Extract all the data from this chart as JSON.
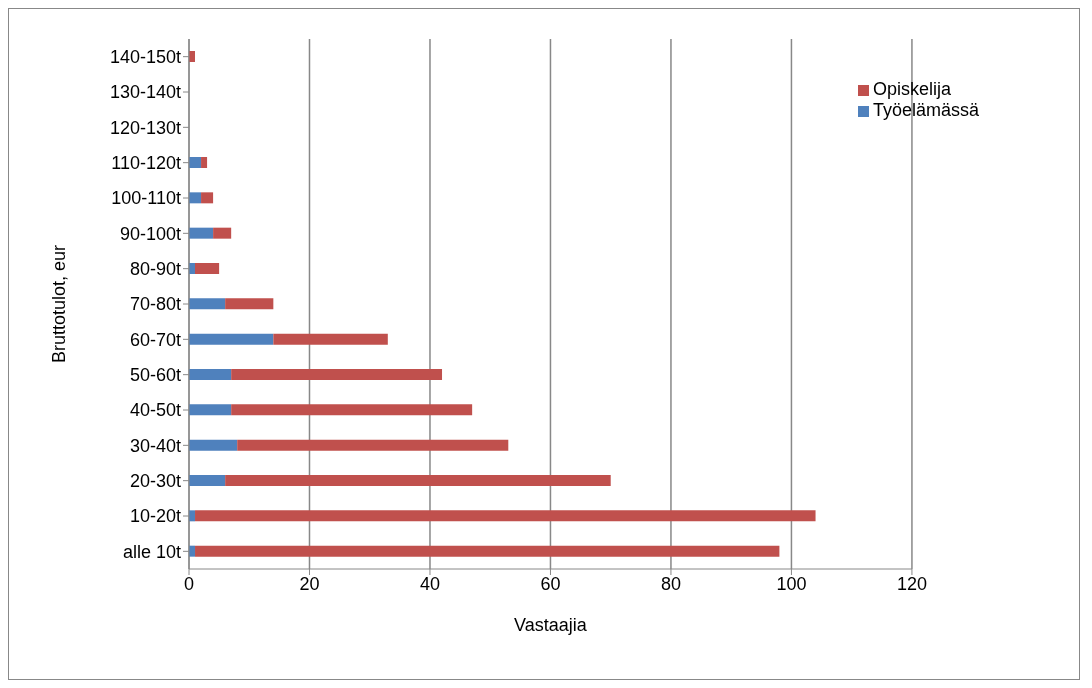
{
  "chart_data": {
    "type": "bar",
    "orientation": "horizontal",
    "stacked": true,
    "xlabel": "Vastaajia",
    "ylabel": "Bruttotulot, eur",
    "categories": [
      "140-150t",
      "130-140t",
      "120-130t",
      "110-120t",
      "100-110t",
      "90-100t",
      "80-90t",
      "70-80t",
      "60-70t",
      "50-60t",
      "40-50t",
      "30-40t",
      "20-30t",
      "10-20t",
      "alle 10t"
    ],
    "series": [
      {
        "name": "Työelämässä",
        "color": "#4f81bd",
        "values": [
          0,
          0,
          0,
          2,
          2,
          4,
          1,
          6,
          14,
          7,
          7,
          8,
          6,
          1,
          1
        ]
      },
      {
        "name": "Opiskelija",
        "color": "#c0504d",
        "values": [
          1,
          0,
          0,
          1,
          2,
          3,
          4,
          8,
          19,
          35,
          40,
          45,
          64,
          103,
          97
        ]
      }
    ],
    "xlim": [
      0,
      120
    ],
    "xticks": [
      0,
      20,
      40,
      60,
      80,
      100,
      120
    ],
    "grid": "x",
    "legend": "top right"
  }
}
